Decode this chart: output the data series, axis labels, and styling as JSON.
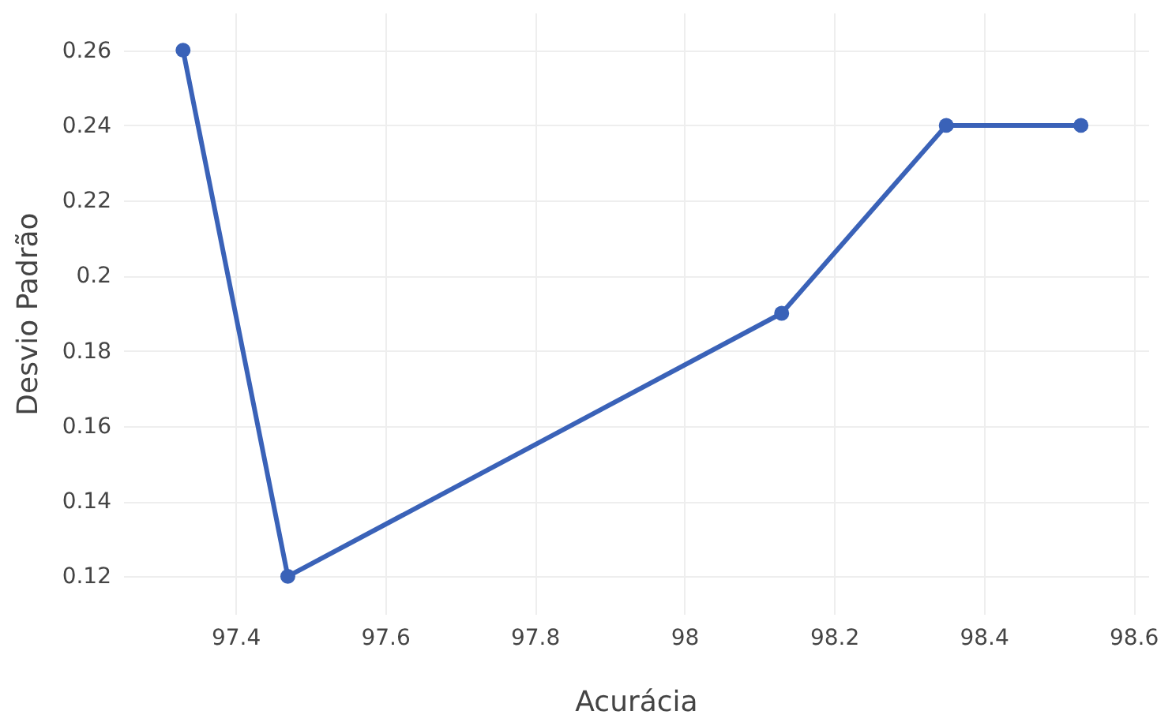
{
  "chart_data": {
    "type": "line",
    "xlabel": "Acurácia",
    "ylabel": "Desvio Padrão",
    "x": [
      97.33,
      97.47,
      98.13,
      98.35,
      98.53
    ],
    "series": [
      {
        "color": "#3a62b8",
        "values": [
          0.26,
          0.12,
          0.19,
          0.24,
          0.24
        ]
      }
    ],
    "xlim": [
      97.25,
      98.62
    ],
    "xticks": [
      97.4,
      97.6,
      97.8,
      98,
      98.2,
      98.4,
      98.6
    ],
    "ylim": [
      0.11,
      0.27
    ],
    "yticks": [
      0.12,
      0.14,
      0.16,
      0.18,
      0.2,
      0.22,
      0.24,
      0.26
    ],
    "grid": true,
    "marker": "circle",
    "line_style": "solid"
  }
}
